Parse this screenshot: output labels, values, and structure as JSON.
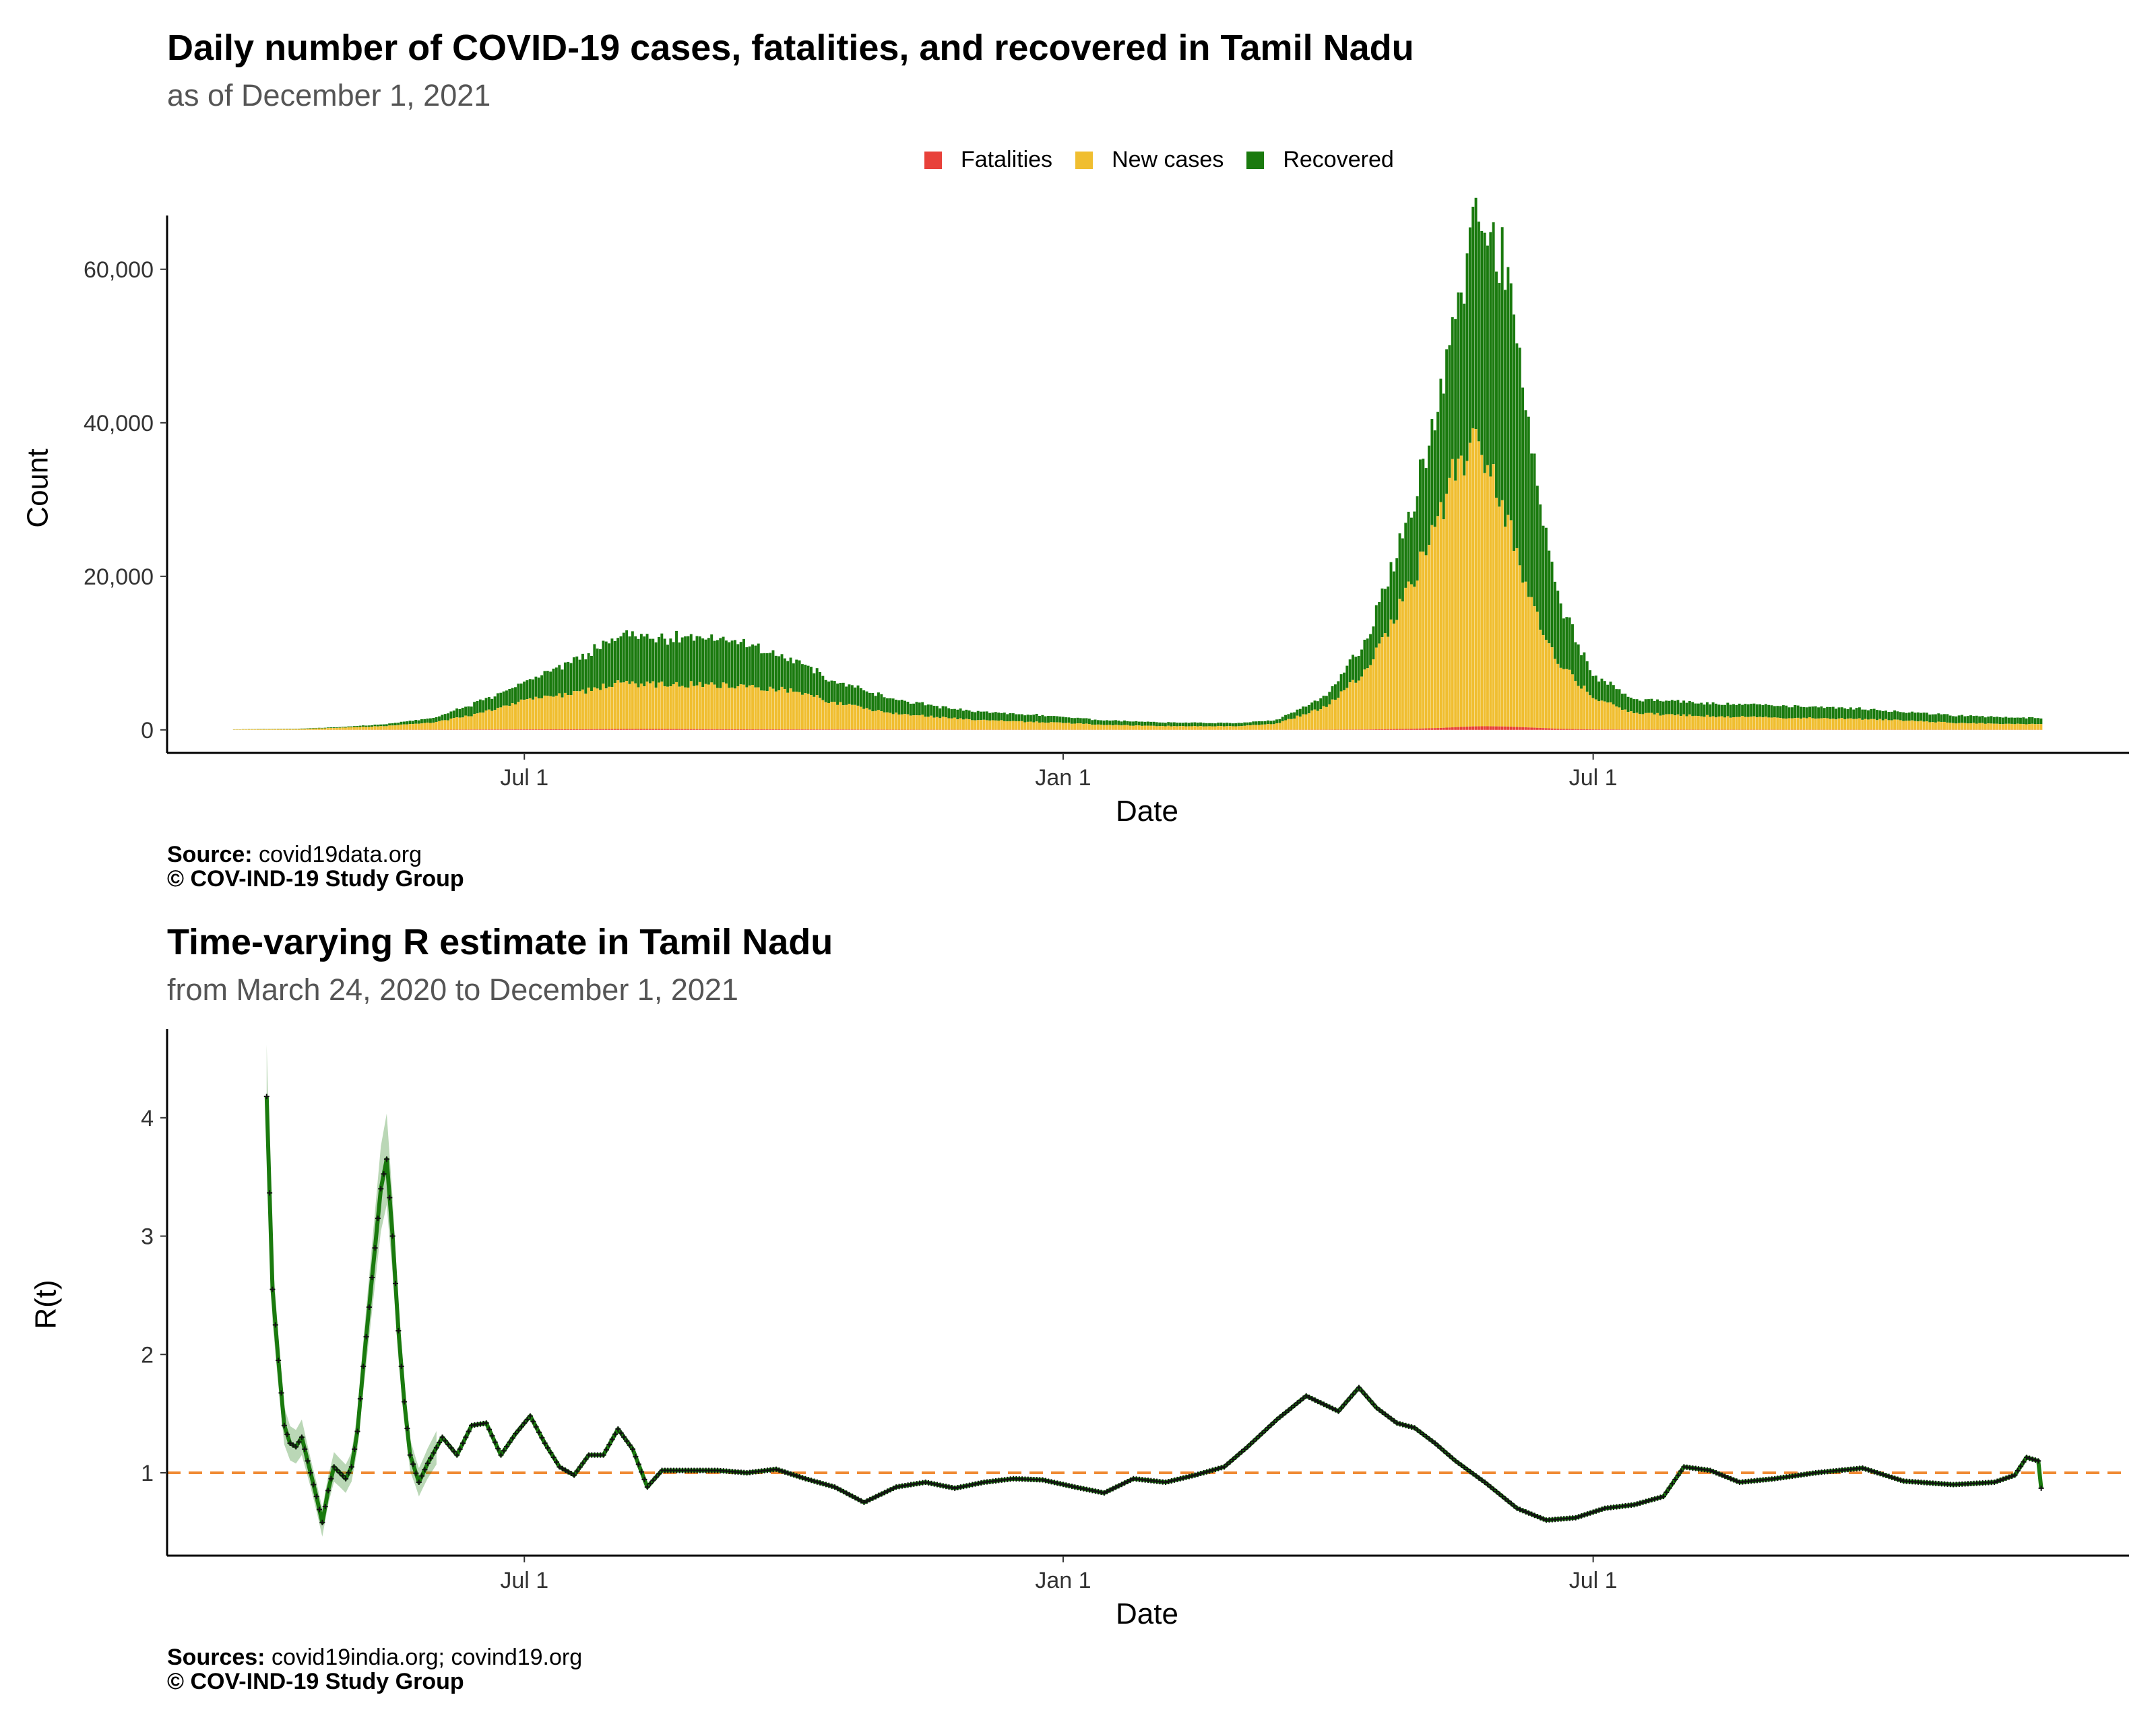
{
  "colors": {
    "fatalities": "#e8413a",
    "new_cases": "#f0be30",
    "recovered": "#1a7a0e",
    "r_line": "#1a7a0e",
    "r_ref": "#f08a32"
  },
  "chart_data": [
    {
      "type": "bar",
      "title": "Daily number of COVID-19 cases, fatalities, and recovered in Tamil Nadu",
      "subtitle": "as of December  1, 2021",
      "xlabel": "Date",
      "ylabel": "Count",
      "legend": {
        "placement": "top",
        "entries": [
          "Fatalities",
          "New cases",
          "Recovered"
        ]
      },
      "xlim": [
        "2020-03-01",
        "2021-12-31"
      ],
      "ylim": [
        -3000,
        67000
      ],
      "x_ticks": [
        {
          "date": "2020-07-01",
          "label": "Jul 1"
        },
        {
          "date": "2021-01-01",
          "label": "Jan 1"
        },
        {
          "date": "2021-07-01",
          "label": "Jul 1"
        }
      ],
      "y_ticks": [
        {
          "value": 0,
          "label": "0"
        },
        {
          "value": 20000,
          "label": "20,000"
        },
        {
          "value": 40000,
          "label": "40,000"
        },
        {
          "value": 60000,
          "label": "60,000"
        }
      ],
      "grid": false,
      "series_anchors": {
        "date": [
          "2020-03-24",
          "2020-04-15",
          "2020-05-01",
          "2020-05-15",
          "2020-06-01",
          "2020-06-15",
          "2020-07-01",
          "2020-07-10",
          "2020-07-20",
          "2020-08-01",
          "2020-08-15",
          "2020-09-01",
          "2020-09-15",
          "2020-10-01",
          "2020-10-15",
          "2020-11-01",
          "2020-11-15",
          "2020-12-01",
          "2020-12-15",
          "2021-01-01",
          "2021-01-15",
          "2021-02-01",
          "2021-02-15",
          "2021-03-01",
          "2021-03-15",
          "2021-04-01",
          "2021-04-15",
          "2021-05-01",
          "2021-05-10",
          "2021-05-15",
          "2021-05-21",
          "2021-05-25",
          "2021-06-01",
          "2021-06-10",
          "2021-06-20",
          "2021-07-01",
          "2021-07-15",
          "2021-08-01",
          "2021-08-15",
          "2021-09-01",
          "2021-09-15",
          "2021-10-01",
          "2021-10-15",
          "2021-11-01",
          "2021-11-15",
          "2021-12-01"
        ],
        "new_cases": [
          50,
          100,
          300,
          500,
          1000,
          2000,
          3800,
          4300,
          4800,
          5900,
          5800,
          5900,
          5600,
          5100,
          3500,
          2300,
          1800,
          1300,
          1100,
          900,
          650,
          500,
          470,
          480,
          800,
          3000,
          7900,
          19500,
          28000,
          33500,
          36300,
          35500,
          27500,
          16000,
          8300,
          4200,
          2100,
          1900,
          1700,
          1600,
          1500,
          1400,
          1200,
          900,
          800,
          730
        ],
        "recovered": [
          20,
          50,
          100,
          250,
          600,
          1500,
          2300,
          3400,
          4500,
          6000,
          6000,
          6200,
          5600,
          4000,
          2800,
          2000,
          1500,
          1100,
          1000,
          800,
          600,
          500,
          450,
          400,
          500,
          1400,
          4000,
          10000,
          15000,
          21000,
          27000,
          29000,
          33000,
          20000,
          7700,
          3000,
          1800,
          1800,
          1600,
          1600,
          1500,
          1300,
          1100,
          1000,
          900,
          800
        ],
        "fatalities": [
          1,
          2,
          5,
          10,
          20,
          40,
          60,
          70,
          80,
          110,
          115,
          90,
          70,
          60,
          50,
          30,
          20,
          15,
          12,
          10,
          8,
          6,
          5,
          5,
          8,
          20,
          50,
          150,
          250,
          350,
          450,
          470,
          440,
          300,
          130,
          60,
          30,
          25,
          22,
          18,
          15,
          15,
          13,
          12,
          11,
          10
        ]
      }
    },
    {
      "type": "line",
      "title": "Time-varying R estimate in Tamil Nadu",
      "subtitle": "from March 24, 2020 to December  1, 2021",
      "xlabel": "Date",
      "ylabel": "R(t)",
      "xlim": [
        "2020-03-01",
        "2021-12-31"
      ],
      "ylim": [
        0.3,
        4.75
      ],
      "reference_line": 1,
      "x_ticks": [
        {
          "date": "2020-07-01",
          "label": "Jul 1"
        },
        {
          "date": "2021-01-01",
          "label": "Jan 1"
        },
        {
          "date": "2021-07-01",
          "label": "Jul 1"
        }
      ],
      "y_ticks": [
        {
          "value": 1,
          "label": "1"
        },
        {
          "value": 2,
          "label": "2"
        },
        {
          "value": 3,
          "label": "3"
        },
        {
          "value": 4,
          "label": "4"
        }
      ],
      "grid": false,
      "series": [
        {
          "x": [
            "2020-04-04",
            "2020-04-06",
            "2020-04-08",
            "2020-04-10",
            "2020-04-12",
            "2020-04-14",
            "2020-04-16",
            "2020-04-18",
            "2020-04-21",
            "2020-04-23",
            "2020-04-25",
            "2020-04-27",
            "2020-04-29",
            "2020-05-01",
            "2020-05-03",
            "2020-05-05",
            "2020-05-07",
            "2020-05-09",
            "2020-05-11",
            "2020-05-13",
            "2020-05-15",
            "2020-05-17",
            "2020-05-19",
            "2020-05-21",
            "2020-05-23",
            "2020-05-26",
            "2020-05-29",
            "2020-06-03",
            "2020-06-08",
            "2020-06-13",
            "2020-06-18",
            "2020-06-23",
            "2020-06-28",
            "2020-07-03",
            "2020-07-08",
            "2020-07-13",
            "2020-07-18",
            "2020-07-23",
            "2020-07-28",
            "2020-08-02",
            "2020-08-07",
            "2020-08-12",
            "2020-08-17",
            "2020-08-25",
            "2020-09-05",
            "2020-09-15",
            "2020-09-25",
            "2020-10-05",
            "2020-10-15",
            "2020-10-25",
            "2020-11-05",
            "2020-11-15",
            "2020-11-25",
            "2020-12-05",
            "2020-12-15",
            "2020-12-25",
            "2021-01-05",
            "2021-01-15",
            "2021-01-25",
            "2021-02-05",
            "2021-02-15",
            "2021-02-25",
            "2021-03-05",
            "2021-03-15",
            "2021-03-25",
            "2021-04-05",
            "2021-04-12",
            "2021-04-18",
            "2021-04-25",
            "2021-05-01",
            "2021-05-08",
            "2021-05-15",
            "2021-05-25",
            "2021-06-05",
            "2021-06-15",
            "2021-06-25",
            "2021-07-05",
            "2021-07-15",
            "2021-07-25",
            "2021-08-01",
            "2021-08-10",
            "2021-08-20",
            "2021-09-01",
            "2021-09-15",
            "2021-10-01",
            "2021-10-15",
            "2021-11-01",
            "2021-11-15",
            "2021-11-22",
            "2021-11-26",
            "2021-11-30",
            "2021-12-01"
          ],
          "y": [
            4.18,
            2.55,
            1.95,
            1.4,
            1.25,
            1.22,
            1.3,
            1.1,
            0.8,
            0.58,
            0.85,
            1.05,
            1.0,
            0.95,
            1.05,
            1.35,
            1.9,
            2.4,
            2.9,
            3.4,
            3.65,
            3.0,
            2.2,
            1.6,
            1.15,
            0.92,
            1.08,
            1.3,
            1.15,
            1.4,
            1.42,
            1.15,
            1.33,
            1.48,
            1.25,
            1.05,
            0.98,
            1.15,
            1.15,
            1.37,
            1.2,
            0.88,
            1.02,
            1.02,
            1.02,
            1.0,
            1.03,
            0.95,
            0.88,
            0.75,
            0.88,
            0.92,
            0.87,
            0.92,
            0.95,
            0.94,
            0.88,
            0.83,
            0.95,
            0.92,
            0.98,
            1.05,
            1.22,
            1.45,
            1.65,
            1.52,
            1.72,
            1.55,
            1.42,
            1.38,
            1.25,
            1.1,
            0.92,
            0.7,
            0.6,
            0.62,
            0.7,
            0.73,
            0.8,
            1.05,
            1.02,
            0.92,
            0.95,
            1.0,
            1.04,
            0.93,
            0.9,
            0.92,
            0.98,
            1.13,
            1.1,
            0.87
          ]
        }
      ]
    }
  ],
  "captions": {
    "top_source_label": "Source:",
    "top_source_value": " covid19data.org",
    "top_copyright": "© COV-IND-19 Study Group",
    "bottom_source_label": "Sources:",
    "bottom_source_value": " covid19india.org; covind19.org",
    "bottom_copyright": "© COV-IND-19 Study Group"
  }
}
